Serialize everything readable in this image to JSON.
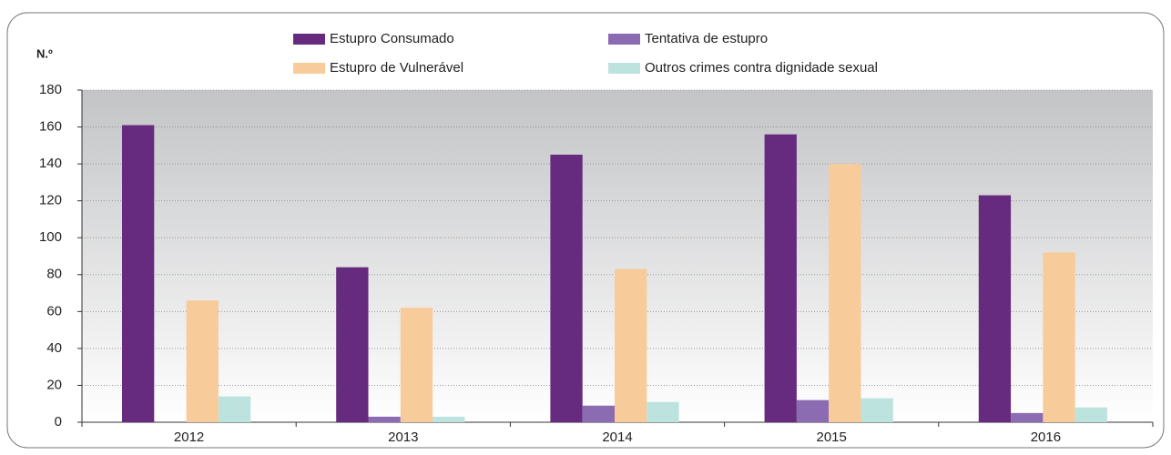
{
  "chart_data": {
    "type": "bar",
    "y_label": "N.º",
    "categories": [
      "2012",
      "2013",
      "2014",
      "2015",
      "2016"
    ],
    "series": [
      {
        "name": "Estupro Consumado",
        "color": "#662a7e",
        "values": [
          161,
          84,
          145,
          156,
          123
        ]
      },
      {
        "name": "Tentativa de estupro",
        "color": "#8b6bb1",
        "values": [
          0,
          3,
          9,
          12,
          5
        ]
      },
      {
        "name": "Estupro de Vulnerável",
        "color": "#f8cb9a",
        "values": [
          66,
          62,
          83,
          140,
          92
        ]
      },
      {
        "name": "Outros crimes contra dignidade sexual",
        "color": "#bde3df",
        "values": [
          14,
          3,
          11,
          13,
          8
        ]
      }
    ],
    "ylim": [
      0,
      180
    ],
    "yticks": [
      0,
      20,
      40,
      60,
      80,
      100,
      120,
      140,
      160,
      180
    ],
    "grid": true
  }
}
